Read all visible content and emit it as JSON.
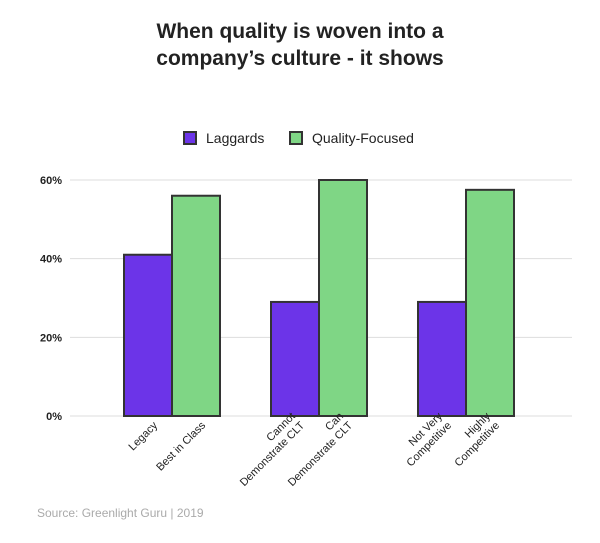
{
  "title_lines": [
    "When quality is woven into a",
    "company’s culture - it shows"
  ],
  "source": "Source: Greenlight Guru | 2019",
  "colors": {
    "laggards": "#6c34e8",
    "quality_focused": "#7fd685",
    "bar_border": "#333333",
    "grid": "#dddddd",
    "tick_text": "#222222"
  },
  "chart_data": {
    "type": "bar",
    "title": "When quality is woven into a company’s culture - it shows",
    "legend": [
      "Laggards",
      "Quality-Focused"
    ],
    "legend_position": "top",
    "grid": true,
    "ylim": [
      0,
      60
    ],
    "yticks": [
      0,
      20,
      40,
      60
    ],
    "ytick_labels": [
      "0%",
      "20%",
      "40%",
      "60%"
    ],
    "groups": [
      {
        "bars": [
          {
            "series": "Laggards",
            "label": "Legacy",
            "label_lines": [
              "Legacy"
            ],
            "value": 41
          },
          {
            "series": "Quality-Focused",
            "label": "Best in Class",
            "label_lines": [
              "Best in Class"
            ],
            "value": 56
          }
        ]
      },
      {
        "bars": [
          {
            "series": "Laggards",
            "label": "Cannot Demonstrate CLT",
            "label_lines": [
              "Cannot",
              "Demonstrate CLT"
            ],
            "value": 29
          },
          {
            "series": "Quality-Focused",
            "label": "Can Demonstrate CLT",
            "label_lines": [
              "Can",
              "Demonstrate CLT"
            ],
            "value": 60
          }
        ]
      },
      {
        "bars": [
          {
            "series": "Laggards",
            "label": "Not Very Competitive",
            "label_lines": [
              "Not Very",
              "Competitive"
            ],
            "value": 29
          },
          {
            "series": "Quality-Focused",
            "label": "Highly Competitive",
            "label_lines": [
              "Highly",
              "Competitive"
            ],
            "value": 57.5
          }
        ]
      }
    ]
  }
}
